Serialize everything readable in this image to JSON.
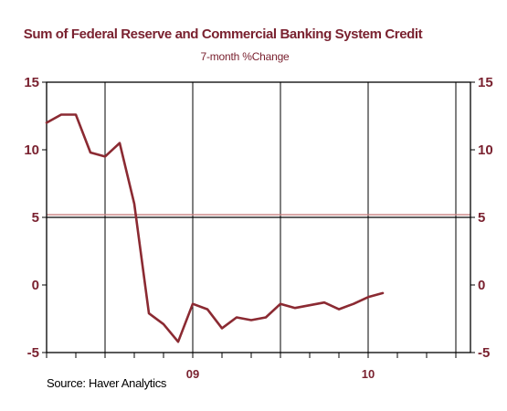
{
  "colors": {
    "title": "#7a2230",
    "series": "#8b2a32",
    "ref_line": "#c98080",
    "axis": "#000000",
    "background": "#ffffff"
  },
  "source_text": "Source: Haver Analytics",
  "chart_data": {
    "type": "line",
    "title": "Sum of Federal Reserve and Commercial Banking System Credit",
    "subtitle": "7-month %Change",
    "xlabel": "",
    "ylabel": "",
    "ylim": [
      -5,
      15
    ],
    "yticks": [
      -5,
      0,
      5,
      10,
      15
    ],
    "ytick_labels": [
      "-5",
      "0",
      "5",
      "10",
      "15"
    ],
    "right_axis": true,
    "grid": "vertical year and half-year lines, horizontal line at 5",
    "reference_line": 5.2,
    "xlim": [
      "2008-03",
      "2010-08"
    ],
    "x_tick_labels": [
      {
        "label": "09",
        "month": "2009-01"
      },
      {
        "label": "10",
        "month": "2010-01"
      }
    ],
    "x_gridlines": [
      "2008-07",
      "2009-01",
      "2009-07",
      "2010-01",
      "2010-07"
    ],
    "x_minor_ticks": [
      "2008-03",
      "2008-05",
      "2008-07",
      "2008-09",
      "2008-11",
      "2009-01",
      "2009-03",
      "2009-05",
      "2009-07",
      "2009-09",
      "2009-11",
      "2010-01",
      "2010-03",
      "2010-05",
      "2010-07"
    ],
    "series": [
      {
        "x": [
          "2008-03",
          "2008-04",
          "2008-05",
          "2008-06",
          "2008-07",
          "2008-08",
          "2008-09",
          "2008-10",
          "2008-11",
          "2008-12",
          "2009-01",
          "2009-02",
          "2009-03",
          "2009-04",
          "2009-05",
          "2009-06",
          "2009-07",
          "2009-08",
          "2009-09",
          "2009-10",
          "2009-11",
          "2009-12",
          "2010-01",
          "2010-02",
          "2010-03",
          "2010-04",
          "2010-05"
        ],
        "values": [
          12.0,
          12.6,
          12.6,
          9.8,
          9.5,
          10.5,
          6.0,
          -2.1,
          -2.9,
          -4.2,
          -1.4,
          -1.8,
          -3.2,
          -2.4,
          -2.6,
          -2.4,
          -1.4,
          -1.7,
          -1.5,
          -1.3,
          -1.8,
          -1.4,
          -0.9,
          -0.6,
          null,
          null,
          null
        ]
      }
    ]
  }
}
